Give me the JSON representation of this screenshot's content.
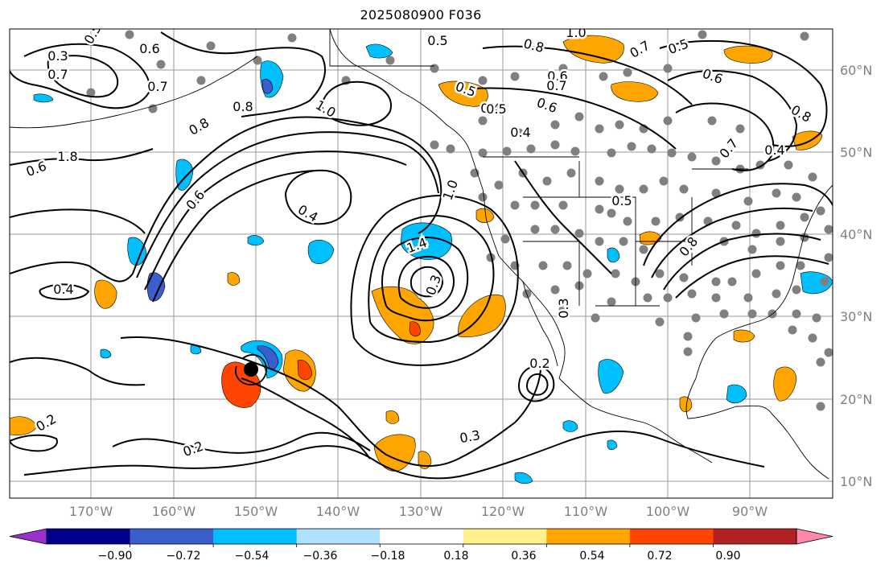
{
  "title": "2025080900 F036",
  "lon_labels": [
    "170°W",
    "160°W",
    "150°W",
    "140°W",
    "130°W",
    "120°W",
    "110°W",
    "100°W",
    "90°W"
  ],
  "lat_labels": [
    "60°N",
    "50°N",
    "40°N",
    "30°N",
    "20°N",
    "10°N"
  ],
  "colorbar": {
    "ticks": [
      "−0.90",
      "−0.72",
      "−0.54",
      "−0.36",
      "−0.18",
      "0.18",
      "0.36",
      "0.54",
      "0.72",
      "0.90"
    ],
    "colors": [
      "#9932cc",
      "#00008b",
      "#3a5fcd",
      "#00bfff",
      "#b0e2ff",
      "#ffffff",
      "#fff08c",
      "#ffa500",
      "#ff4500",
      "#b22222",
      "#ff88aa"
    ]
  },
  "contour_labels": [
    "0.3",
    "0.5",
    "0.6",
    "0.7",
    "0.5",
    "0.7",
    "1.0",
    "0.8",
    "0.7",
    "0.6",
    "0.8",
    "0.7",
    "0.5",
    "0.6",
    "0.5",
    "0.4",
    "1.0",
    "0.5",
    "0.8",
    "0.6",
    "0.4",
    "0.4",
    "0.6",
    "0.7",
    "0.4",
    "1.8",
    "1.0",
    "1.4",
    "0.3",
    "0.5",
    "0.2",
    "0.3",
    "0.2",
    "0.8",
    "0.3",
    "0.2",
    "0.4",
    "0.8",
    "0.6"
  ]
}
